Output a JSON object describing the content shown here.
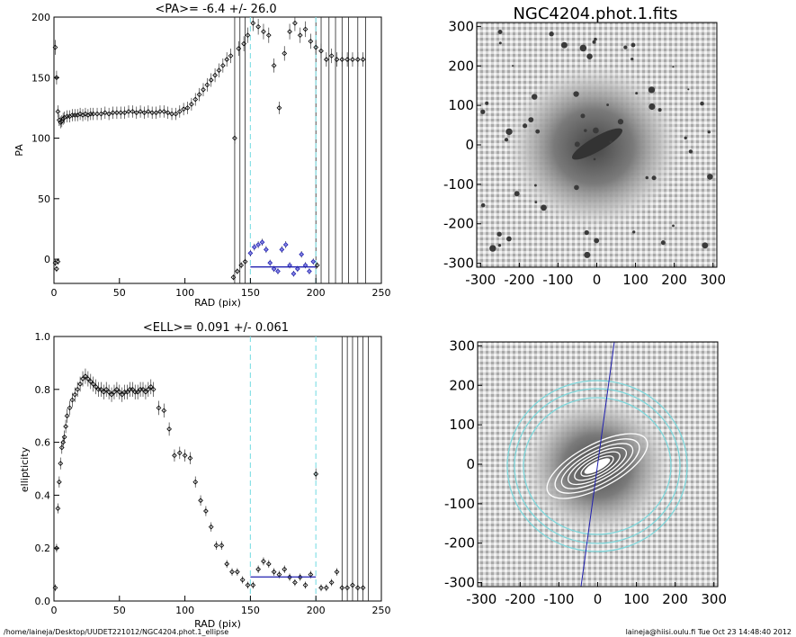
{
  "footer": {
    "path": "/home/laineja/Desktop/UUDET221012/NGC4204.phot.1_ellipse",
    "user_time": "laineja@hiisi.oulu.fi  Tue Oct 23 14:48:40 2012"
  },
  "colors": {
    "axis": "#000000",
    "data": "#000000",
    "mark_blue": "#1f1fb4",
    "fit_line": "#2020b0",
    "dash_cyan": "#88e0e6",
    "image_dark": "#3a3a3a"
  },
  "chart_data": [
    {
      "type": "scatter",
      "title": "<PA>=  -6.4 +/-  26.0",
      "xlabel": "RAD (pix)",
      "ylabel": "PA",
      "xlim": [
        0,
        250
      ],
      "ylim": [
        -20,
        200
      ],
      "xticks": [
        0,
        50,
        100,
        150,
        200,
        250
      ],
      "yticks": [
        0,
        50,
        100,
        150,
        200
      ],
      "grid": false,
      "series": [
        {
          "style": "points",
          "x": [
            1,
            2,
            3,
            4,
            5,
            6,
            7,
            8,
            10,
            12,
            14,
            16,
            18,
            20,
            22,
            24,
            26,
            28,
            30,
            33,
            36,
            39,
            42,
            45,
            48,
            51,
            54,
            57,
            60,
            63,
            66,
            69,
            72,
            75,
            78,
            81,
            84,
            87,
            90,
            93,
            96,
            99,
            102,
            105,
            108,
            111,
            114,
            117,
            120,
            123,
            126,
            129,
            132,
            135,
            138,
            141,
            145,
            148,
            152,
            156,
            160,
            164,
            168,
            172,
            176,
            180,
            184,
            188,
            192,
            196,
            200,
            204,
            208,
            212,
            216,
            220,
            224,
            228,
            232,
            236
          ],
          "y": [
            175,
            150,
            122,
            115,
            113,
            114,
            116,
            117,
            118,
            118,
            119,
            119,
            119,
            120,
            119,
            120,
            119,
            120,
            120,
            120,
            120,
            121,
            120,
            121,
            121,
            121,
            121,
            122,
            122,
            121,
            122,
            121,
            122,
            121,
            121,
            122,
            122,
            121,
            120,
            120,
            122,
            124,
            125,
            128,
            132,
            136,
            140,
            144,
            148,
            152,
            156,
            160,
            165,
            168,
            100,
            174,
            178,
            185,
            195,
            192,
            188,
            185,
            160,
            125,
            170,
            188,
            195,
            185,
            190,
            180,
            175,
            172,
            165,
            168,
            165,
            165,
            165,
            165,
            165,
            165
          ]
        },
        {
          "style": "points-lower",
          "x": [
            1,
            2,
            3,
            137,
            140,
            143,
            146,
            150,
            153,
            156,
            159,
            162,
            165,
            168,
            171,
            174,
            177,
            180,
            183,
            186,
            189,
            192,
            195,
            198,
            201
          ],
          "y": [
            -3,
            -8,
            -2,
            -15,
            -10,
            -5,
            -2,
            5,
            10,
            12,
            14,
            8,
            -3,
            -8,
            -10,
            8,
            12,
            -5,
            -12,
            -8,
            4,
            -5,
            -10,
            -2,
            -5
          ]
        }
      ],
      "fit": {
        "x": [
          150,
          200
        ],
        "y": -6.4
      },
      "vlines_dashed": [
        150,
        200
      ],
      "vlines_solid": [
        138,
        142,
        146,
        200,
        204,
        210,
        215,
        220,
        225,
        232,
        238
      ]
    },
    {
      "type": "scatter",
      "title": "<ELL>= 0.091 +/-  0.061",
      "xlabel": "RAD (pix)",
      "ylabel": "ellipticity",
      "xlim": [
        0,
        250
      ],
      "ylim": [
        0.0,
        1.0
      ],
      "xticks": [
        0,
        50,
        100,
        150,
        200,
        250
      ],
      "yticks": [
        0.0,
        0.2,
        0.4,
        0.6,
        0.8,
        1.0
      ],
      "grid": false,
      "series": [
        {
          "style": "points",
          "x": [
            1,
            2,
            3,
            4,
            5,
            6,
            7,
            8,
            9,
            10,
            12,
            14,
            16,
            18,
            20,
            22,
            24,
            26,
            28,
            30,
            32,
            34,
            36,
            38,
            40,
            42,
            44,
            46,
            48,
            50,
            52,
            54,
            56,
            58,
            60,
            62,
            64,
            66,
            68,
            70,
            72,
            74,
            76,
            80,
            84,
            88,
            92,
            96,
            100,
            104,
            108,
            112,
            116,
            120,
            124,
            128,
            132,
            136,
            140,
            144,
            148,
            152,
            156,
            160,
            164,
            168,
            172,
            176,
            180,
            184,
            188,
            192,
            196,
            200,
            204,
            208,
            212,
            216,
            220,
            224,
            228,
            232,
            236
          ],
          "y": [
            0.05,
            0.2,
            0.35,
            0.45,
            0.52,
            0.58,
            0.6,
            0.62,
            0.66,
            0.7,
            0.73,
            0.76,
            0.78,
            0.8,
            0.82,
            0.84,
            0.85,
            0.84,
            0.83,
            0.82,
            0.81,
            0.8,
            0.8,
            0.79,
            0.8,
            0.79,
            0.78,
            0.79,
            0.8,
            0.79,
            0.78,
            0.79,
            0.79,
            0.8,
            0.8,
            0.79,
            0.79,
            0.8,
            0.8,
            0.79,
            0.8,
            0.81,
            0.8,
            0.73,
            0.72,
            0.65,
            0.55,
            0.56,
            0.55,
            0.54,
            0.45,
            0.38,
            0.34,
            0.28,
            0.21,
            0.21,
            0.14,
            0.11,
            0.11,
            0.08,
            0.06,
            0.06,
            0.12,
            0.15,
            0.14,
            0.11,
            0.1,
            0.12,
            0.09,
            0.07,
            0.09,
            0.06,
            0.1,
            0.48,
            0.05,
            0.05,
            0.07,
            0.11,
            0.05,
            0.05,
            0.06,
            0.05,
            0.05
          ]
        }
      ],
      "fit": {
        "x": [
          150,
          200
        ],
        "y": 0.091
      },
      "vlines_dashed": [
        150,
        200
      ],
      "vlines_solid": [
        220,
        224,
        228,
        232,
        236,
        240
      ]
    },
    {
      "type": "heatmap",
      "title": "NGC4204.phot.1.fits",
      "xlim": [
        -310,
        310
      ],
      "ylim": [
        -310,
        310
      ],
      "xticks": [
        -300,
        -200,
        -100,
        0,
        100,
        200,
        300
      ],
      "yticks": [
        -300,
        -200,
        -100,
        0,
        100,
        200,
        300
      ],
      "xtick_labels": [
        "-300",
        "-200",
        "-100",
        "0",
        "100",
        "200",
        "300"
      ],
      "ytick_labels": [
        "-300",
        "-200",
        "-100",
        "0",
        "100",
        "200",
        "300"
      ]
    },
    {
      "type": "heatmap",
      "title": "",
      "xlim": [
        -310,
        310
      ],
      "ylim": [
        -310,
        310
      ],
      "xticks": [
        -300,
        -200,
        -100,
        0,
        100,
        200,
        300
      ],
      "yticks": [
        -300,
        -200,
        -100,
        0,
        100,
        200,
        300
      ],
      "xtick_labels": [
        "-300",
        "-200",
        "-100",
        "0",
        "100",
        "200",
        "300"
      ],
      "ytick_labels": [
        "-300",
        "-200",
        "-100",
        "0",
        "100",
        "200",
        "300"
      ],
      "overlay": {
        "ellipse_levels": 6,
        "pa_line_angle_deg": 84
      }
    }
  ]
}
